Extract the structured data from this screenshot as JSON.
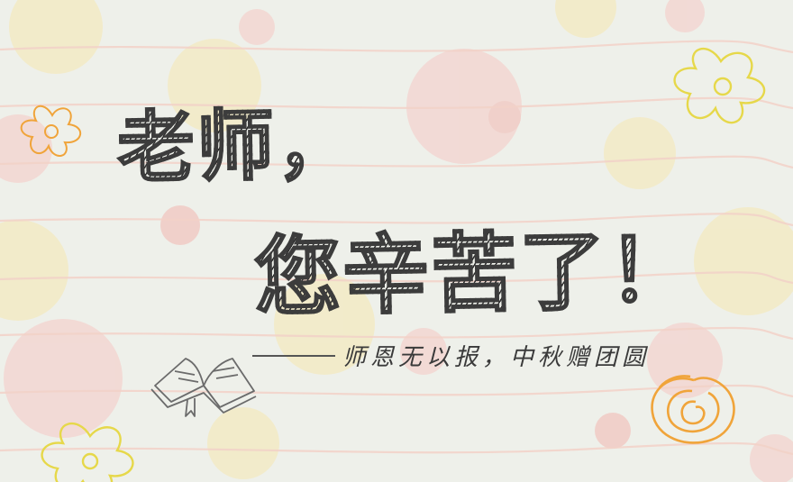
{
  "title": {
    "line1": "老师，",
    "line2": "您辛苦了！"
  },
  "subtitle": "师恩无以报，中秋赠团圆",
  "colors": {
    "background": "#eef0ea",
    "text": "#333333",
    "flower_yellow": "#e6d84a",
    "flower_orange": "#f0a43a",
    "bubble_pink": "#f6c9c4",
    "bubble_yellow": "#f6e7b0",
    "stripe": "#f3d2c8"
  },
  "decorations": {
    "flowers": [
      "flower-icon",
      "flower-icon",
      "flower-icon"
    ],
    "rose": "rose-icon",
    "book": "open-book-icon"
  }
}
